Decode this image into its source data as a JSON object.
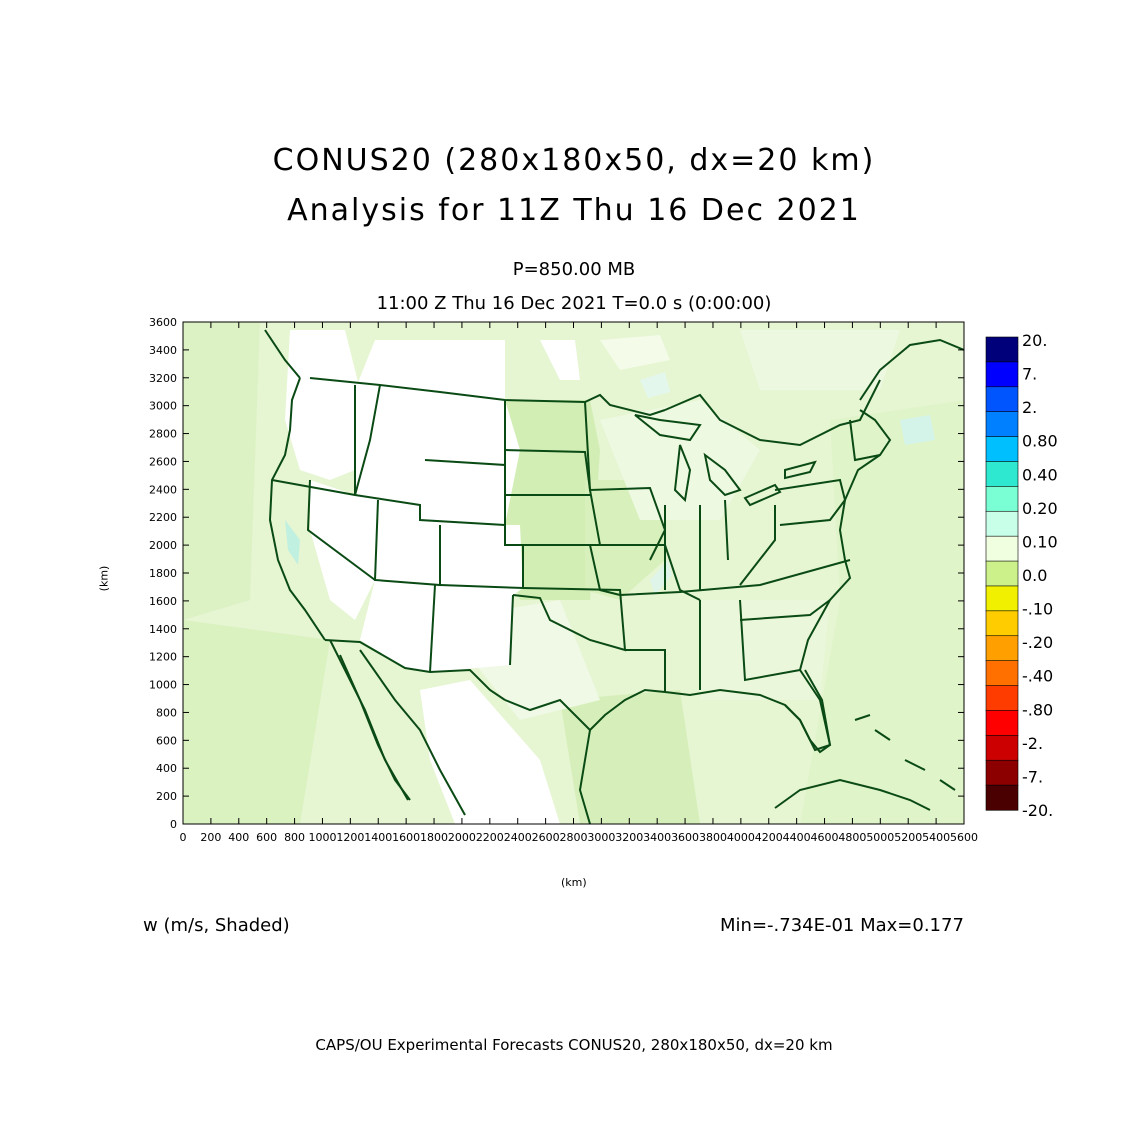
{
  "titles": {
    "line1": "CONUS20 (280x180x50, dx=20 km)",
    "line2": "Analysis for 11Z Thu 16 Dec 2021",
    "level": "P=850.00 MB",
    "time": "11:00 Z Thu 16 Dec 2021   T=0.0 s (0:00:00)"
  },
  "field_label": "w (m/s, Shaded)",
  "minmax": "Min=-.734E-01 Max=0.177",
  "footer": "CAPS/OU Experimental Forecasts  CONUS20, 280x180x50, dx=20 km",
  "axes": {
    "xlabel": "(km)",
    "ylabel": "(km)",
    "xticks": [
      "0",
      "200",
      "400",
      "600",
      "800",
      "1000",
      "1200",
      "1400",
      "1600",
      "1800",
      "2000",
      "2200",
      "2400",
      "2600",
      "2800",
      "3000",
      "3200",
      "3400",
      "3600",
      "3800",
      "4000",
      "4200",
      "4400",
      "4600",
      "4800",
      "5000",
      "5200",
      "5400",
      "5600"
    ],
    "yticks": [
      "0",
      "200",
      "400",
      "600",
      "800",
      "1000",
      "1200",
      "1400",
      "1600",
      "1800",
      "2000",
      "2200",
      "2400",
      "2600",
      "2800",
      "3000",
      "3200",
      "3400",
      "3600"
    ],
    "xlim": [
      0,
      5600
    ],
    "ylim": [
      0,
      3600
    ]
  },
  "colorbar": {
    "labels": [
      "20.",
      "7.",
      "2.",
      "0.80",
      "0.40",
      "0.20",
      "0.10",
      "0.0",
      "-.10",
      "-.20",
      "-.40",
      "-.80",
      "-2.",
      "-7.",
      "-20."
    ],
    "colors": [
      "#00007a",
      "#0000ff",
      "#0055ff",
      "#007fff",
      "#00bfff",
      "#2ee8d0",
      "#7affd4",
      "#c8ffe8",
      "#f0ffe0",
      "#ccf08a",
      "#f0f000",
      "#ffcc00",
      "#ffa000",
      "#ff7000",
      "#ff3c00",
      "#ff0000",
      "#cc0000",
      "#8c0000",
      "#4a0000"
    ]
  },
  "map_colors": {
    "background_shade": "#e6f5d2",
    "lighter_shade": "#f4fbe8",
    "darker_shade": "#d2eeb4",
    "zero_shade": "#ffffff",
    "boundary": "#0a4a14"
  }
}
